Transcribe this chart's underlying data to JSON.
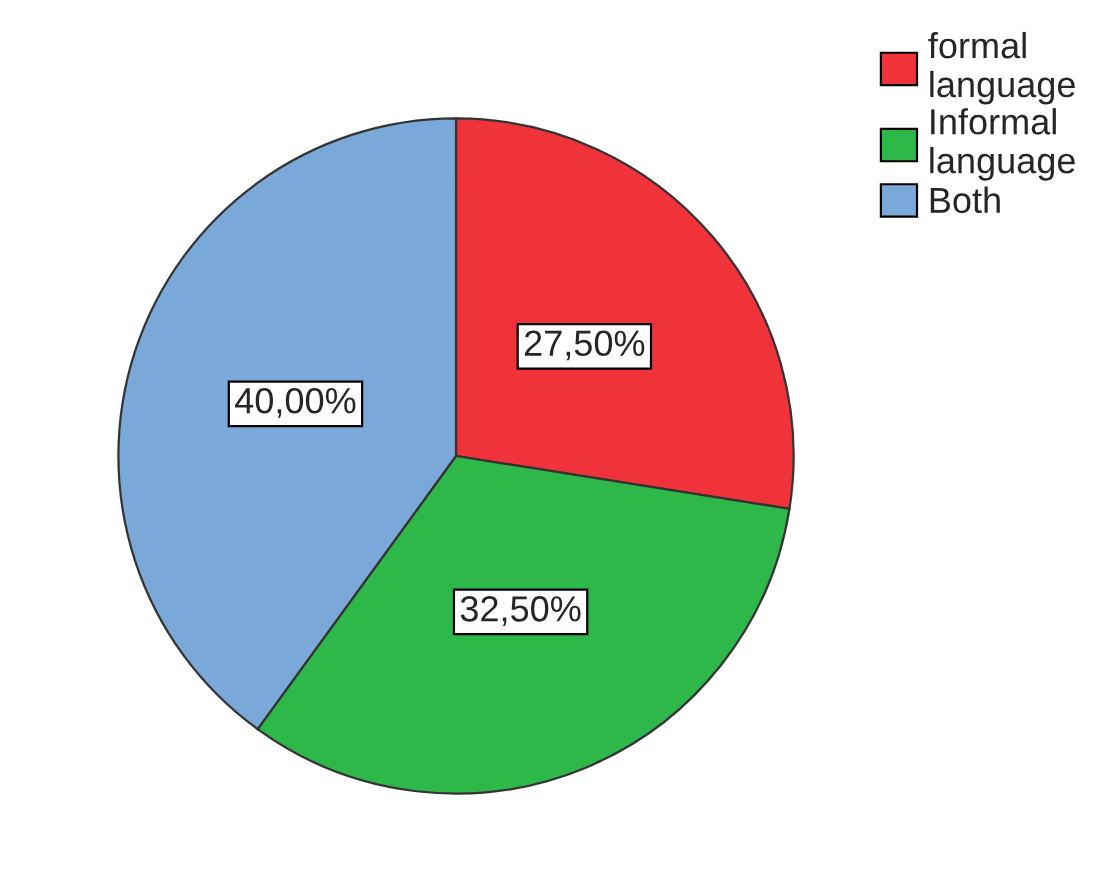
{
  "chart_data": {
    "type": "pie",
    "categories": [
      "formal language",
      "Informal language",
      "Both"
    ],
    "values": [
      27.5,
      32.5,
      40.0
    ],
    "value_labels": [
      "27,50%",
      "32,50%",
      "40,00%"
    ],
    "colors": [
      "#f0333a",
      "#2fb84a",
      "#7aa8d8"
    ],
    "legend": "top right"
  }
}
